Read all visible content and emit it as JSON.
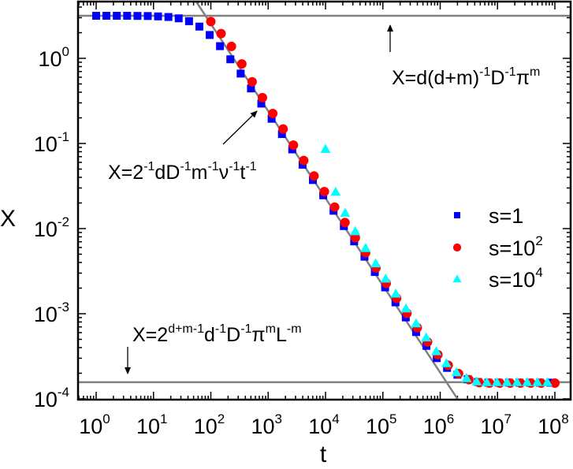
{
  "chart_data": {
    "type": "scatter",
    "title": "",
    "xlabel": "t",
    "ylabel": "X",
    "xscale": "log",
    "yscale": "log",
    "xlim": [
      0.5,
      160000000.0
    ],
    "ylim": [
      0.0001,
      4.6
    ],
    "x_ticks": [
      {
        "base": "10",
        "exp": "0",
        "value": 1
      },
      {
        "base": "10",
        "exp": "1",
        "value": 10
      },
      {
        "base": "10",
        "exp": "2",
        "value": 100
      },
      {
        "base": "10",
        "exp": "3",
        "value": 1000
      },
      {
        "base": "10",
        "exp": "4",
        "value": 10000
      },
      {
        "base": "10",
        "exp": "5",
        "value": 100000
      },
      {
        "base": "10",
        "exp": "6",
        "value": 1000000
      },
      {
        "base": "10",
        "exp": "7",
        "value": 10000000
      },
      {
        "base": "10",
        "exp": "8",
        "value": 100000000
      }
    ],
    "y_ticks": [
      {
        "base": "10",
        "exp": "0",
        "value": 1
      },
      {
        "base": "10",
        "exp": "-1",
        "value": 0.1
      },
      {
        "base": "10",
        "exp": "-2",
        "value": 0.01
      },
      {
        "base": "10",
        "exp": "-3",
        "value": 0.001
      },
      {
        "base": "10",
        "exp": "-4",
        "value": 0.0001
      }
    ],
    "grid": false,
    "legend_position": "right-middle",
    "series": [
      {
        "name": "s=1",
        "label_base": "s=1",
        "label_sup": "",
        "marker": "square",
        "color": "#0000ff",
        "points": [
          [
            1,
            3.16
          ],
          [
            1.51,
            3.16
          ],
          [
            2.29,
            3.16
          ],
          [
            3.47,
            3.16
          ],
          [
            5.25,
            3.15
          ],
          [
            7.94,
            3.14
          ],
          [
            12.0,
            3.11
          ],
          [
            18.2,
            3.06
          ],
          [
            27.5,
            2.95
          ],
          [
            41.7,
            2.73
          ],
          [
            63.1,
            2.36
          ],
          [
            95.5,
            1.88
          ],
          [
            144.5,
            1.39
          ],
          [
            218.8,
            0.974
          ],
          [
            331,
            0.662
          ],
          [
            501,
            0.443
          ],
          [
            759,
            0.294
          ],
          [
            1148,
            0.195
          ],
          [
            1738,
            0.129
          ],
          [
            2630,
            0.0852
          ],
          [
            3981,
            0.0563
          ],
          [
            6026,
            0.0372
          ],
          [
            9120,
            0.0246
          ],
          [
            13800,
            0.0162
          ],
          [
            20890,
            0.0107
          ],
          [
            31620,
            0.00708
          ],
          [
            47860,
            0.00468
          ],
          [
            72440,
            0.00309
          ],
          [
            109600,
            0.00204
          ],
          [
            166000,
            0.00136
          ],
          [
            251200,
            0.000905
          ],
          [
            380200,
            0.000609
          ],
          [
            575400,
            0.000419
          ],
          [
            871000,
            0.000301
          ],
          [
            1318000,
            0.000231
          ],
          [
            1995000,
            0.000192
          ],
          [
            3020000,
            0.00017
          ],
          [
            4571000,
            0.000158
          ],
          [
            6918000,
            0.000155
          ],
          [
            10470000,
            0.000155
          ],
          [
            15850000,
            0.000155
          ],
          [
            23990000,
            0.000155
          ],
          [
            36310000,
            0.000155
          ],
          [
            54950000,
            0.000155
          ],
          [
            83180000,
            0.000155
          ]
        ]
      },
      {
        "name": "s=10^2",
        "label_base": "s=10",
        "label_sup": "2",
        "marker": "circle",
        "color": "#ff0000",
        "points": [
          [
            100,
            2.7
          ],
          [
            151,
            1.95
          ],
          [
            229,
            1.38
          ],
          [
            347,
            0.86
          ],
          [
            525,
            0.53
          ],
          [
            794,
            0.345
          ],
          [
            1202,
            0.225
          ],
          [
            1820,
            0.148
          ],
          [
            2754,
            0.0955
          ],
          [
            4169,
            0.063
          ],
          [
            6310,
            0.0415
          ],
          [
            9550,
            0.0272
          ],
          [
            14450,
            0.0179
          ],
          [
            21880,
            0.0118
          ],
          [
            33110,
            0.0078
          ],
          [
            50120,
            0.0052
          ],
          [
            75860,
            0.00345
          ],
          [
            114800,
            0.00228
          ],
          [
            173800,
            0.00152
          ],
          [
            263000,
            0.00101
          ],
          [
            398100,
            0.000685
          ],
          [
            602600,
            0.000465
          ],
          [
            912000,
            0.00033
          ],
          [
            1380000,
            0.000248
          ],
          [
            2089000,
            0.000198
          ],
          [
            3162000,
            0.000168
          ],
          [
            4786000,
            0.000155
          ],
          [
            7244000,
            0.000153
          ],
          [
            10960000,
            0.000153
          ],
          [
            16600000,
            0.000153
          ],
          [
            25120000,
            0.000153
          ],
          [
            38020000,
            0.000153
          ],
          [
            57540000,
            0.000153
          ],
          [
            100000000,
            0.000153
          ]
        ]
      },
      {
        "name": "s=10^4",
        "label_base": "s=10",
        "label_sup": "4",
        "marker": "triangle",
        "color": "#00ffff",
        "points": [
          [
            10000,
            0.086
          ],
          [
            15000,
            0.027
          ],
          [
            22000,
            0.0153
          ],
          [
            33000,
            0.0093
          ],
          [
            50000,
            0.0059
          ],
          [
            75000,
            0.0039
          ],
          [
            112000,
            0.00258
          ],
          [
            168000,
            0.00172
          ],
          [
            253000,
            0.00115
          ],
          [
            380000,
            0.00077
          ],
          [
            570000,
            0.000525
          ],
          [
            855000,
            0.000362
          ],
          [
            1280000,
            0.000262
          ],
          [
            1920000,
            0.000205
          ],
          [
            2880000,
            0.000175
          ],
          [
            4320000,
            0.00016
          ],
          [
            6490000,
            0.000157
          ],
          [
            9730000,
            0.000157
          ],
          [
            14600000,
            0.000157
          ],
          [
            21900000,
            0.000157
          ],
          [
            32800000,
            0.000157
          ],
          [
            49300000,
            0.000157
          ],
          [
            73900000,
            0.000157
          ]
        ]
      }
    ],
    "reference_lines": [
      {
        "name": "upper-plateau",
        "type": "horizontal",
        "y": 3.16,
        "color": "#808080"
      },
      {
        "name": "lower-plateau",
        "type": "horizontal",
        "y": 0.000157,
        "color": "#808080"
      },
      {
        "name": "power-law",
        "type": "line",
        "from": [
          56,
          4.6
        ],
        "to": [
          2000000,
          0.0001
        ],
        "color": "#808080"
      }
    ],
    "annotations": [
      {
        "name": "upper-plateau-formula",
        "parts": [
          [
            "X=d(d+m)",
            ""
          ],
          [
            "",
            "-1"
          ],
          [
            "D",
            ""
          ],
          [
            "",
            "-1"
          ],
          [
            "π",
            ""
          ],
          [
            "",
            "m"
          ]
        ],
        "text": "X=d(d+m)^-1 D^-1 π^m",
        "arrow": {
          "direction": "up",
          "x_t": 4000000,
          "from_y": 0.66,
          "to_y": 2.6
        }
      },
      {
        "name": "power-law-formula",
        "parts": [
          [
            "X=2",
            ""
          ],
          [
            "",
            "-1"
          ],
          [
            "dD",
            ""
          ],
          [
            "",
            "-1"
          ],
          [
            "m",
            ""
          ],
          [
            "",
            "-1"
          ],
          [
            "ν",
            ""
          ],
          [
            "",
            "-1"
          ],
          [
            "t",
            ""
          ],
          [
            "",
            "-1"
          ]
        ],
        "text": "X=2^-1 d D^-1 m^-1 ν^-1 t^-1",
        "arrow": {
          "direction": "up-right"
        }
      },
      {
        "name": "lower-plateau-formula",
        "parts": [
          [
            "X=2",
            ""
          ],
          [
            "",
            "d+m-1"
          ],
          [
            "d",
            ""
          ],
          [
            "",
            "-1"
          ],
          [
            "D",
            ""
          ],
          [
            "",
            "-1"
          ],
          [
            "π",
            ""
          ],
          [
            "",
            "m"
          ],
          [
            "L",
            ""
          ],
          [
            "",
            "-m"
          ]
        ],
        "text": "X=2^(d+m-1) d^-1 D^-1 π^m L^-m",
        "arrow": {
          "direction": "down",
          "x_t": 3.3
        }
      }
    ]
  },
  "labels": {
    "xlabel": "t",
    "ylabel": "X",
    "legend": [
      {
        "base": "s=1",
        "sup": ""
      },
      {
        "base": "s=10",
        "sup": "2"
      },
      {
        "base": "s=10",
        "sup": "4"
      }
    ]
  }
}
